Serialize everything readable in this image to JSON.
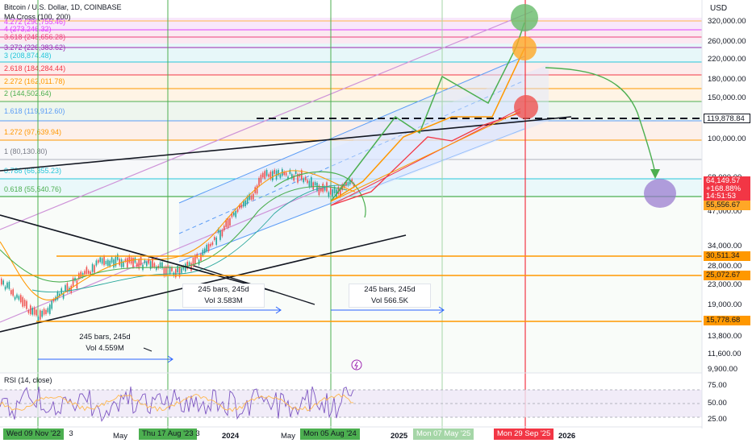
{
  "header": {
    "symbol": "Bitcoin / U.S. Dollar, 1D, COINBASE",
    "indicator": "MA Cross (100, 200)",
    "rsi": "RSI (14, close)"
  },
  "currency": "USD",
  "colors": {
    "up": "#26a69a",
    "down": "#ef5350",
    "green_line": "#4caf50",
    "orange_line": "#ff9800",
    "red_line": "#f23645",
    "purple": "#9c27b0",
    "channel_fill": "#dbe6ff"
  },
  "price_axis": [
    "320,000.00",
    "260,000.00",
    "220,000.00",
    "180,000.00",
    "150,000.00",
    "100,000.00",
    "68,000.00",
    "47,000.00",
    "34,000.00",
    "28,000.00",
    "23,000.00",
    "19,000.00",
    "13,800.00",
    "11,600.00",
    "9,900.00"
  ],
  "rsi_axis": [
    "75.00",
    "50.00",
    "25.00"
  ],
  "price_tags": [
    {
      "label": "119,878.84",
      "bg": "#ffffff",
      "fg": "#131722",
      "border": "#131722"
    },
    {
      "label": "64,149.57",
      "bg": "#f23645",
      "fg": "#ffffff"
    },
    {
      "label": "+168.88%",
      "bg": "#f23645",
      "fg": "#ffffff"
    },
    {
      "label": "14:51:53",
      "bg": "#f23645",
      "fg": "#ffffff"
    },
    {
      "label": "55,556.67",
      "bg": "#ffa726",
      "fg": "#131722"
    },
    {
      "label": "30,511.34",
      "bg": "#ff9800",
      "fg": "#131722"
    },
    {
      "label": "25,072.67",
      "bg": "#ff9800",
      "fg": "#131722"
    },
    {
      "label": "15,778.68",
      "bg": "#ff9800",
      "fg": "#131722"
    }
  ],
  "fib_levels": [
    {
      "label": "4.272 (290,755.46)",
      "color": "#e040fb"
    },
    {
      "label": "4 (273,246.32)",
      "color": "#e040fb"
    },
    {
      "label": "3.618 (248,656.28)",
      "color": "#ec407a"
    },
    {
      "label": "3.272 (226,383.62)",
      "color": "#9c27b0"
    },
    {
      "label": "3 (208,874.48)",
      "color": "#26c6da"
    },
    {
      "label": "2.618 (184,284.44)",
      "color": "#f23645"
    },
    {
      "label": "2.272 (162,011.78)",
      "color": "#ff9800"
    },
    {
      "label": "2 (144,502.64)",
      "color": "#4caf50"
    },
    {
      "label": "1.618 (119,912.60)",
      "color": "#5b9cf6"
    },
    {
      "label": "1.272 (97,639.94)",
      "color": "#ff9800"
    },
    {
      "label": "1 (80,130.80)",
      "color": "#787b86"
    },
    {
      "label": "0.786 (66,355.23)",
      "color": "#26c6da"
    },
    {
      "label": "0.618 (55,540.76)",
      "color": "#4caf50"
    }
  ],
  "boxes": [
    {
      "line1": "245 bars, 245d",
      "line2": "Vol 4.559M"
    },
    {
      "line1": "245 bars, 245d",
      "line2": "Vol 3.583M"
    },
    {
      "line1": "245 bars, 245d",
      "line2": "Vol 566.5K"
    }
  ],
  "time_axis": [
    "May",
    "2024",
    "May",
    "2025",
    "2026"
  ],
  "date_tags": [
    {
      "label": "Wed 09 Nov '22",
      "bg": "#4caf50",
      "fg": "#131722"
    },
    {
      "label": "Thu 17 Aug '23",
      "bg": "#4caf50",
      "fg": "#131722"
    },
    {
      "label": "Mon 05 Aug '24",
      "bg": "#4caf50",
      "fg": "#131722"
    },
    {
      "label": "Mon 07 May '25",
      "bg": "#a5d6a7",
      "fg": "#ffffff"
    },
    {
      "label": "Mon 29 Sep '25",
      "bg": "#f23645",
      "fg": "#ffffff"
    }
  ],
  "partial_labels": [
    "3",
    "3"
  ]
}
